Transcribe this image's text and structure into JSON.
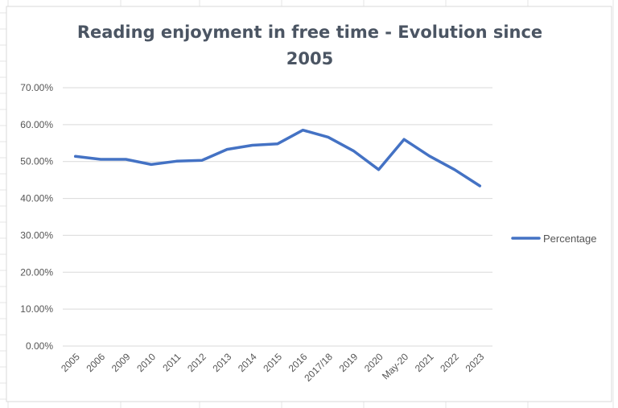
{
  "chart_data": {
    "type": "line",
    "title": "Reading enjoyment in free time - Evolution since 2005",
    "title_lines": [
      "Reading enjoyment in free time - Evolution since",
      "2005"
    ],
    "categories": [
      "2005",
      "2006",
      "2009",
      "2010",
      "2011",
      "2012",
      "2013",
      "2014",
      "2015",
      "2016",
      "2017/18",
      "2019",
      "2020",
      "May-20",
      "2021",
      "2022",
      "2023"
    ],
    "series": [
      {
        "name": "Percentage",
        "color": "#4472c4",
        "values": [
          51.4,
          50.6,
          50.6,
          49.2,
          50.1,
          50.3,
          53.3,
          54.4,
          54.8,
          58.5,
          56.6,
          52.9,
          47.8,
          56.0,
          51.5,
          47.8,
          43.4
        ]
      }
    ],
    "y_ticks": [
      "0.00%",
      "10.00%",
      "20.00%",
      "30.00%",
      "40.00%",
      "50.00%",
      "60.00%",
      "70.00%"
    ],
    "ylim": [
      0,
      70
    ],
    "grid": true,
    "legend_position": "right"
  }
}
